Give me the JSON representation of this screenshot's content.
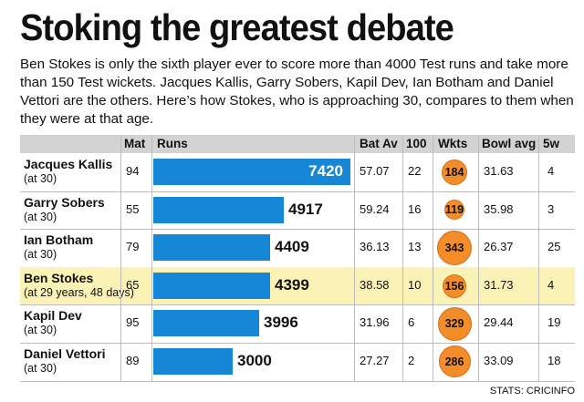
{
  "title": "Stoking the greatest debate",
  "subtitle": "Ben Stokes is only the sixth player ever to score more than 4000 Test runs and take more than 150 Test wickets. Jacques Kallis, Garry Sobers, Kapil Dev, Ian Botham and Daniel Vettori are the others. Here’s how Stokes, who is approaching 30, compares to them when they were at that age.",
  "source": "STATS: CRICINFO",
  "colors": {
    "bar": "#1587d6",
    "bubble": "#f28d2a",
    "highlight": "#fbf2b6",
    "header": "#d3d3d3"
  },
  "chart_data": {
    "type": "table",
    "columns": [
      "Mat",
      "Runs",
      "Bat Av",
      "100",
      "Wkts",
      "Bowl avg",
      "5w"
    ],
    "rows": [
      {
        "player": "Jacques Kallis",
        "note": "(at 30)",
        "mat": "94",
        "runs": 7420,
        "runs_label": "7420",
        "bat_av": "57.07",
        "hundreds": "22",
        "wkts": 184,
        "wkts_label": "184",
        "bowl_avg": "31.63",
        "five_w": "4",
        "highlight": false
      },
      {
        "player": "Garry Sobers",
        "note": "(at 30)",
        "mat": "55",
        "runs": 4917,
        "runs_label": "4917",
        "bat_av": "59.24",
        "hundreds": "16",
        "wkts": 119,
        "wkts_label": "119",
        "bowl_avg": "35.98",
        "five_w": "3",
        "highlight": false
      },
      {
        "player": "Ian Botham",
        "note": "(at 30)",
        "mat": "79",
        "runs": 4409,
        "runs_label": "4409",
        "bat_av": "36.13",
        "hundreds": "13",
        "wkts": 343,
        "wkts_label": "343",
        "bowl_avg": "26.37",
        "five_w": "25",
        "highlight": false
      },
      {
        "player": "Ben Stokes",
        "note": "(at 29 years, 48 days)",
        "mat": "65",
        "runs": 4399,
        "runs_label": "4399",
        "bat_av": "38.58",
        "hundreds": "10",
        "wkts": 156,
        "wkts_label": "156",
        "bowl_avg": "31.73",
        "five_w": "4",
        "highlight": true
      },
      {
        "player": "Kapil Dev",
        "note": "(at 30)",
        "mat": "95",
        "runs": 3996,
        "runs_label": "3996",
        "bat_av": "31.96",
        "hundreds": "6",
        "wkts": 329,
        "wkts_label": "329",
        "bowl_avg": "29.44",
        "five_w": "19",
        "highlight": false
      },
      {
        "player": "Daniel Vettori",
        "note": "(at 30)",
        "mat": "89",
        "runs": 3000,
        "runs_label": "3000",
        "bat_av": "27.27",
        "hundreds": "2",
        "wkts": 286,
        "wkts_label": "286",
        "bowl_avg": "33.09",
        "five_w": "18",
        "highlight": false
      }
    ]
  }
}
